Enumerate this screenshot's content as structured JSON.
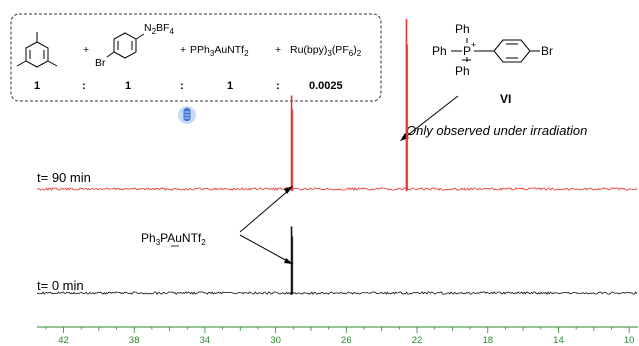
{
  "chart_data": {
    "type": "line",
    "xlabel": "",
    "ylabel": "",
    "xlim": [
      43.5,
      9.5
    ],
    "xticks": [
      42,
      38,
      34,
      30,
      26,
      22,
      18,
      14,
      10
    ],
    "grid": false,
    "series": [
      {
        "label": "t= 90 min",
        "color": "#e8312f",
        "peaks": [
          {
            "ppm": 29.1,
            "relative_height": 0.55
          },
          {
            "ppm": 22.6,
            "relative_height": 1.0
          }
        ]
      },
      {
        "label": "t= 0 min",
        "color": "#111111",
        "peaks": [
          {
            "ppm": 29.1,
            "relative_height": 0.55
          }
        ]
      }
    ],
    "annotations": {
      "callout_label": {
        "main": "Ph",
        "sub": "3",
        "main2": "PAuNTf",
        "sub2": "2"
      },
      "note": "Only observed under irradiation",
      "compound_label": "VI"
    }
  },
  "scheme": {
    "plus": "+",
    "diazonium_group": {
      "main": "N",
      "sub": "2",
      "main2": "BF",
      "sub2": "4"
    },
    "bromo": "Br",
    "gold_reagent": {
      "main": "PPh",
      "sub": "3",
      "main2": "AuNTf",
      "sub2": "2"
    },
    "ru_reagent": {
      "main": "Ru(bpy)",
      "sub": "3",
      "main2": "(PF",
      "sub2": "6",
      "main3": ")",
      "sub3": "2"
    },
    "ratios": [
      "1",
      "1",
      "1",
      "0.0025"
    ],
    "colon": ":"
  },
  "structure_vi": {
    "ph_top": "Ph",
    "ph_left": "Ph",
    "p_label": "P",
    "p_charge": "+",
    "ph_bottom": "Ph",
    "bromo": "Br"
  },
  "lamp_icon_color": "#3a6fd8"
}
